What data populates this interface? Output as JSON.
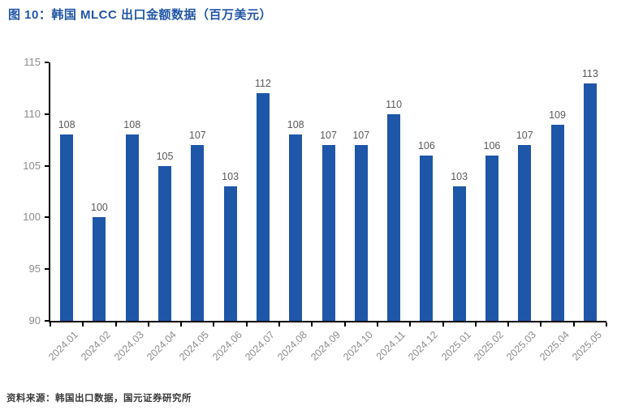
{
  "figure": {
    "title": "图 10：韩国 MLCC 出口金额数据（百万美元）",
    "source": "资料来源：韩国出口数据，国元证券研究所"
  },
  "colors": {
    "title_blue": "#2156A6",
    "bar_blue": "#1E56A8",
    "axis_black": "#000000",
    "axis_tick_label_gray": "#8C8C8C",
    "data_label_gray": "#595959",
    "source_text_gray": "#3A3A3A",
    "background": "#FFFFFF"
  },
  "chart_data": {
    "type": "bar",
    "title": "韩国 MLCC 出口金额数据（百万美元）",
    "categories": [
      "2024.01",
      "2024.02",
      "2024.03",
      "2024.04",
      "2024.05",
      "2024.06",
      "2024.07",
      "2024.08",
      "2024.09",
      "2024.10",
      "2024.11",
      "2024.12",
      "2025.01",
      "2025.02",
      "2025.03",
      "2025.04",
      "2025.05"
    ],
    "values": [
      108,
      100,
      108,
      105,
      107,
      103,
      112,
      108,
      107,
      107,
      110,
      106,
      103,
      106,
      107,
      109,
      113
    ],
    "xlabel": "",
    "ylabel": "",
    "ylim": [
      90,
      115
    ],
    "yticks": [
      90,
      95,
      100,
      105,
      110,
      115
    ],
    "grid": false,
    "legend": false,
    "data_labels": true,
    "bar_color": "#1E56A8"
  }
}
